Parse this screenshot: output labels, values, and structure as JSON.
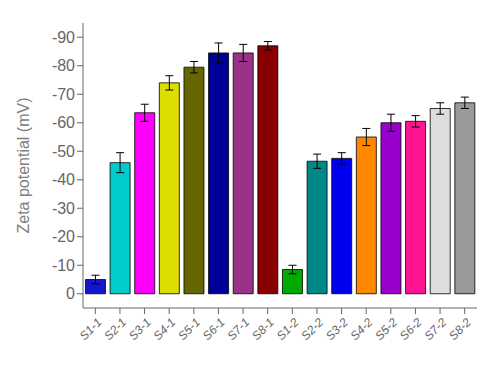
{
  "chart_data": {
    "type": "bar",
    "categories": [
      "S1-1",
      "S2-1",
      "S3-1",
      "S4-1",
      "S5-1",
      "S6-1",
      "S7-1",
      "S8-1",
      "S1-2",
      "S2-2",
      "S3-2",
      "S4-2",
      "S5-2",
      "S6-2",
      "S7-2",
      "S8-2"
    ],
    "values": [
      -5.0,
      -46.0,
      -63.5,
      -74.0,
      -79.5,
      -84.5,
      -84.5,
      -87.0,
      -8.5,
      -46.5,
      -47.5,
      -55.0,
      -60.0,
      -60.5,
      -65.0,
      -67.0
    ],
    "errors": [
      1.5,
      3.5,
      3.0,
      2.5,
      2.0,
      3.5,
      3.0,
      1.5,
      1.5,
      2.5,
      2.0,
      3.0,
      3.0,
      2.0,
      2.0,
      2.0
    ],
    "colors": [
      "#1515CC",
      "#00CCCC",
      "#FF00FF",
      "#DDDD00",
      "#666600",
      "#000099",
      "#993388",
      "#880000",
      "#00AA00",
      "#008888",
      "#0000EE",
      "#FF8800",
      "#9900CC",
      "#FF1493",
      "#DDDDDD",
      "#999999"
    ],
    "ylabel": "Zeta potential (mV)",
    "ylim": [
      -95,
      5
    ],
    "yticks": [
      0,
      -10,
      -20,
      -30,
      -40,
      -50,
      -60,
      -70,
      -80,
      -90
    ],
    "grid": false
  }
}
